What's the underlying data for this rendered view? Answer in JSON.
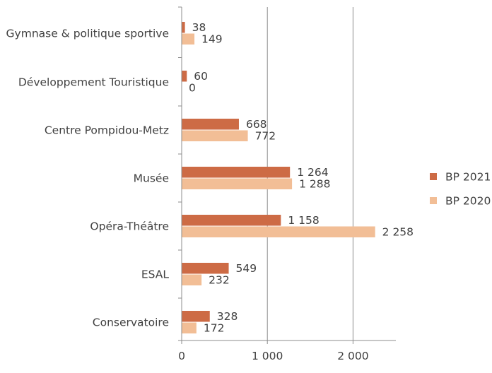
{
  "colors": {
    "series_2021": "#CD6B45",
    "series_2020": "#F2BE96",
    "gridline": "#8c8c8c",
    "axis": "#8c8c8c",
    "text": "#404040"
  },
  "chart_data": {
    "type": "bar",
    "orientation": "horizontal",
    "title": "",
    "xlabel": "",
    "ylabel": "",
    "categories": [
      "Gymnase & politique sportive",
      "Développement Touristique",
      "Centre Pompidou-Metz",
      "Musée",
      "Opéra-Théâtre",
      "ESAL",
      "Conservatoire"
    ],
    "series": [
      {
        "name": "BP 2021",
        "values": [
          38,
          60,
          668,
          1264,
          1158,
          549,
          328
        ],
        "labels": [
          "38",
          "60",
          "668",
          "1 264",
          "1 158",
          "549",
          "328"
        ]
      },
      {
        "name": "BP 2020",
        "values": [
          149,
          0,
          772,
          1288,
          2258,
          232,
          172
        ],
        "labels": [
          "149",
          "0",
          "772",
          "1 288",
          "2 258",
          "232",
          "172"
        ]
      }
    ],
    "xlim": [
      0,
      2500
    ],
    "xticks": [
      0,
      1000,
      2000
    ],
    "xtick_labels": [
      "0",
      "1 000",
      "2 000"
    ],
    "grid": true,
    "legend": "right"
  }
}
